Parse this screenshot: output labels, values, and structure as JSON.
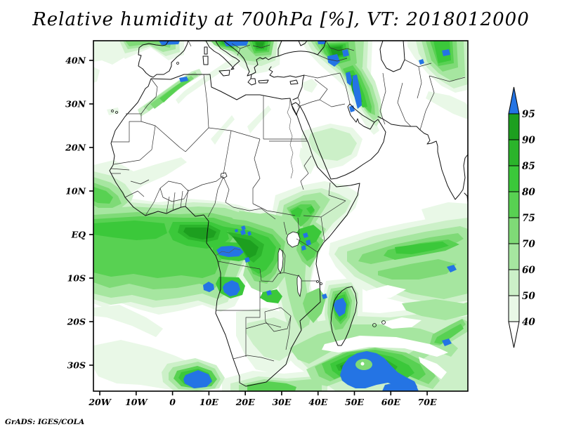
{
  "title": "Relative humidity at 700hPa [%], VT: 2018012000",
  "footer": "GrADS: IGES/COLA",
  "axes": {
    "x_ticks": [
      {
        "label": "20W",
        "lon": -20
      },
      {
        "label": "10W",
        "lon": -10
      },
      {
        "label": "0",
        "lon": 0
      },
      {
        "label": "10E",
        "lon": 10
      },
      {
        "label": "20E",
        "lon": 20
      },
      {
        "label": "30E",
        "lon": 30
      },
      {
        "label": "40E",
        "lon": 40
      },
      {
        "label": "50E",
        "lon": 50
      },
      {
        "label": "60E",
        "lon": 60
      },
      {
        "label": "70E",
        "lon": 70
      }
    ],
    "y_ticks": [
      {
        "label": "40N",
        "lat": 40
      },
      {
        "label": "30N",
        "lat": 30
      },
      {
        "label": "20N",
        "lat": 20
      },
      {
        "label": "10N",
        "lat": 10
      },
      {
        "label": "EQ",
        "lat": 0
      },
      {
        "label": "10S",
        "lat": -10
      },
      {
        "label": "20S",
        "lat": -20
      },
      {
        "label": "30S",
        "lat": -30
      }
    ]
  },
  "colorbar": {
    "labels": [
      "95",
      "90",
      "85",
      "80",
      "75",
      "70",
      "60",
      "50",
      "40"
    ],
    "segments": [
      {
        "range": "90-95",
        "color": "#1d9f1f"
      },
      {
        "range": "85-90",
        "color": "#2bb42b"
      },
      {
        "range": "80-85",
        "color": "#3bc83a"
      },
      {
        "range": "75-80",
        "color": "#58d152"
      },
      {
        "range": "70-75",
        "color": "#7fda77"
      },
      {
        "range": "60-70",
        "color": "#a6e6a0"
      },
      {
        "range": "50-60",
        "color": "#ccf0c8"
      },
      {
        "range": "40-50",
        "color": "#e9f8e7"
      }
    ],
    "above_color": "#2474e4",
    "below_color": "#ffffff"
  },
  "chart_data": {
    "type": "heatmap",
    "title": "Relative humidity at 700hPa [%], VT: 2018012000",
    "variable": "Relative humidity",
    "level": "700hPa",
    "units": "%",
    "valid_time": "2018012000",
    "projection": "latlon",
    "lon_range": [
      -21.8,
      81.1
    ],
    "lat_range": [
      -36,
      44.5
    ],
    "x_tick_labels": [
      "20W",
      "10W",
      "0",
      "10E",
      "20E",
      "30E",
      "40E",
      "50E",
      "60E",
      "70E"
    ],
    "y_tick_labels": [
      "40N",
      "30N",
      "20N",
      "10N",
      "EQ",
      "10S",
      "20S",
      "30S"
    ],
    "contour_levels": [
      40,
      50,
      60,
      70,
      75,
      80,
      85,
      90,
      95
    ],
    "palette": [
      "#ffffff",
      "#e9f8e7",
      "#ccf0c8",
      "#a6e6a0",
      "#7fda77",
      "#58d152",
      "#3bc83a",
      "#2bb42b",
      "#1d9f1f",
      "#2474e4"
    ],
    "legend_position": "right",
    "high_value_regions": [
      {
        "region": "Congo Basin / Gulf of Guinea coast",
        "approx_value": "85-95, local >95"
      },
      {
        "region": "Angola coastal spots",
        "approx_value": ">95"
      },
      {
        "region": "Equatorial Atlantic band",
        "approx_value": "75-90"
      },
      {
        "region": "Ethiopian Highlands / Lake Victoria",
        "approx_value": "80-95, specks >95"
      },
      {
        "region": "Madagascar west-central",
        "approx_value": ">95"
      },
      {
        "region": "Cyclone swirl southeast of South Africa",
        "approx_value": "80-95, core >95"
      },
      {
        "region": "SW Indian Ocean band near 5-10S",
        "approx_value": "70-90"
      },
      {
        "region": "Atlas Mountains streak",
        "approx_value": "70-85, speck >95"
      },
      {
        "region": "Alps / Balkans top edge",
        "approx_value": "85-95, >95 dashes"
      },
      {
        "region": "Eastern Turkey / Caucasus",
        "approx_value": "85-95, >95 spots"
      },
      {
        "region": "Zagros Mountains (Iran)",
        "approx_value": "85-95, >95 band"
      },
      {
        "region": "Arabian Peninsula center-north patch",
        "approx_value": "50-70"
      }
    ]
  }
}
